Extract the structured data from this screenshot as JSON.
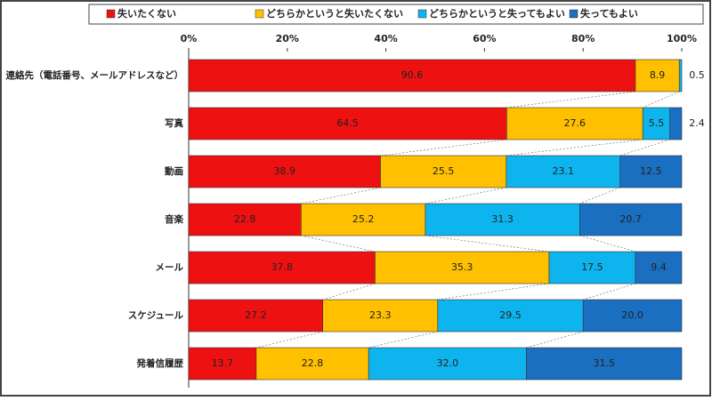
{
  "chart_data": {
    "type": "stacked-bar-horizontal",
    "categories": [
      "連絡先（電話番号、メールアドレスなど）",
      "写真",
      "動画",
      "音楽",
      "メール",
      "スケジュール",
      "発着信履歴"
    ],
    "series": [
      {
        "name": "失いたくない",
        "color": "#ee1111",
        "values": [
          90.6,
          64.5,
          38.9,
          22.8,
          37.8,
          27.2,
          13.7
        ]
      },
      {
        "name": "どちらかというと失いたくない",
        "color": "#ffc000",
        "values": [
          8.9,
          27.6,
          25.5,
          25.2,
          35.3,
          23.3,
          22.8
        ]
      },
      {
        "name": "どちらかというと失ってもよい",
        "color": "#0eb4ee",
        "values": [
          0.5,
          5.5,
          23.1,
          31.3,
          17.5,
          29.5,
          32.0
        ],
        "value_labels": [
          "0.5",
          "5.5",
          "23.1",
          "31.3",
          "17.5",
          "29.5",
          "32.0"
        ]
      },
      {
        "name": "失ってもよい",
        "color": "#1b6fc0",
        "values": [
          null,
          2.4,
          12.5,
          20.7,
          9.4,
          20.0,
          31.5
        ],
        "value_labels": [
          null,
          "2.4",
          "12.5",
          "20.7",
          "9.4",
          "20.0",
          "31.5"
        ]
      }
    ],
    "xlim": [
      0,
      100
    ],
    "xticks": [
      {
        "value": 0,
        "label": "0%"
      },
      {
        "value": 20,
        "label": "20%"
      },
      {
        "value": 40,
        "label": "40%"
      },
      {
        "value": 60,
        "label": "60%"
      },
      {
        "value": 80,
        "label": "80%"
      },
      {
        "value": 100,
        "label": "100%"
      }
    ],
    "legend": "top"
  }
}
